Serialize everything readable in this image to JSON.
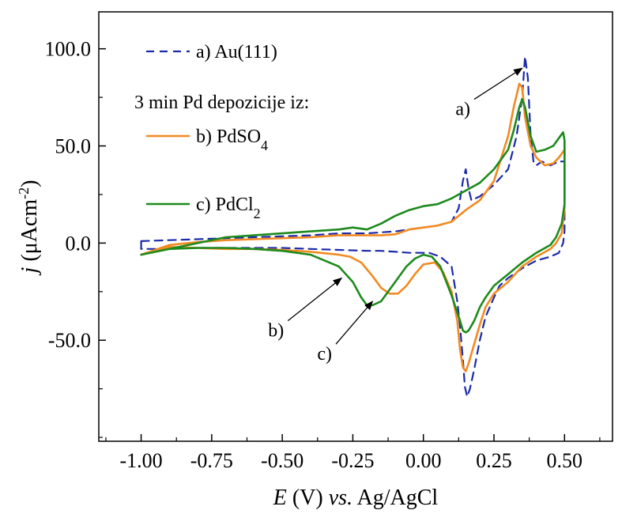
{
  "chart_data": {
    "type": "line",
    "title": "",
    "xlabel": {
      "var": "E",
      "unit": " (V) ",
      "vs": "vs.",
      "ref": " Ag/AgCl"
    },
    "ylabel": {
      "var": "j",
      "unit_pre": " (μAcm",
      "unit_sup": "-2",
      "unit_post": ")"
    },
    "xlim": [
      -1.15,
      0.67
    ],
    "ylim": [
      -102,
      119
    ],
    "x_ticks": [
      -1.0,
      -0.75,
      -0.5,
      -0.25,
      0.0,
      0.25,
      0.5
    ],
    "x_tick_labels": [
      "-1.00",
      "-0.75",
      "-0.50",
      "-0.25",
      "0.00",
      "0.25",
      "0.50"
    ],
    "y_ticks": [
      -50,
      0,
      50,
      100
    ],
    "y_tick_labels": [
      "-50.0",
      "0.0",
      "50.0",
      "100.0"
    ],
    "grid": false,
    "legend": {
      "placement": "top-left",
      "heading": "3 min Pd depozicije iz:",
      "entries": [
        {
          "text": "a) Au(111)",
          "sub": ""
        },
        {
          "text": "b) PdSO",
          "sub": "4"
        },
        {
          "text": "c) PdCl",
          "sub": "2"
        }
      ]
    },
    "annotations": [
      {
        "label": "a)",
        "tip": [
          0.35,
          90
        ],
        "tail": [
          0.18,
          74
        ]
      },
      {
        "label": "b)",
        "tip": [
          -0.29,
          -18
        ],
        "tail": [
          -0.48,
          -40
        ]
      },
      {
        "label": "c)",
        "tip": [
          -0.18,
          -30
        ],
        "tail": [
          -0.31,
          -52
        ]
      }
    ],
    "series": [
      {
        "key": "a",
        "name": "a) Au(111)",
        "color": "#1a2aa8",
        "dash": "dashed",
        "x": [
          -1.0,
          -0.9,
          -0.8,
          -0.6,
          -0.4,
          -0.3,
          -0.2,
          -0.1,
          0.0,
          0.05,
          0.1,
          0.125,
          0.14,
          0.15,
          0.16,
          0.17,
          0.2,
          0.25,
          0.3,
          0.33,
          0.35,
          0.36,
          0.37,
          0.38,
          0.39,
          0.4,
          0.42,
          0.45,
          0.48,
          0.5,
          0.5,
          0.495,
          0.48,
          0.45,
          0.4,
          0.35,
          0.3,
          0.27,
          0.25,
          0.22,
          0.2,
          0.18,
          0.165,
          0.155,
          0.147,
          0.14,
          0.13,
          0.12,
          0.1,
          0.06,
          0.02,
          0.0,
          -0.05,
          -0.1,
          -0.15,
          -0.2,
          -0.3,
          -0.4,
          -0.5,
          -0.6,
          -0.7,
          -0.8,
          -0.9,
          -1.0,
          -1.0
        ],
        "y": [
          1,
          1.5,
          2,
          3,
          4,
          5,
          5,
          6,
          8,
          9,
          11,
          18,
          32,
          38,
          28,
          22,
          24,
          30,
          38,
          55,
          75,
          96,
          85,
          55,
          42,
          40,
          42,
          40,
          42,
          42,
          6,
          0,
          -5,
          -7,
          -9,
          -13,
          -18,
          -22,
          -28,
          -38,
          -50,
          -65,
          -75,
          -79,
          -74,
          -60,
          -43,
          -30,
          -12,
          -7,
          -5,
          -5,
          -5,
          -4.5,
          -4,
          -4,
          -3.5,
          -3,
          -2.5,
          -2.5,
          -2.5,
          -2.5,
          -3,
          -3,
          1
        ]
      },
      {
        "key": "b",
        "name": "b) PdSO4",
        "color": "#f28a22",
        "dash": "solid",
        "x": [
          -1.0,
          -0.9,
          -0.8,
          -0.7,
          -0.6,
          -0.5,
          -0.4,
          -0.3,
          -0.2,
          -0.15,
          -0.1,
          -0.05,
          0.0,
          0.05,
          0.1,
          0.15,
          0.2,
          0.25,
          0.3,
          0.32,
          0.34,
          0.35,
          0.36,
          0.38,
          0.4,
          0.43,
          0.46,
          0.48,
          0.5,
          0.5,
          0.49,
          0.47,
          0.45,
          0.4,
          0.35,
          0.3,
          0.25,
          0.22,
          0.2,
          0.18,
          0.16,
          0.15,
          0.14,
          0.13,
          0.12,
          0.1,
          0.07,
          0.04,
          0.0,
          -0.03,
          -0.06,
          -0.09,
          -0.12,
          -0.15,
          -0.18,
          -0.22,
          -0.26,
          -0.3,
          -0.4,
          -0.5,
          -0.6,
          -0.7,
          -0.8,
          -0.9,
          -1.0
        ],
        "y": [
          -6,
          -1,
          0.5,
          1.5,
          2,
          2.5,
          3,
          4,
          4,
          4,
          4.5,
          7,
          8,
          9,
          11,
          17,
          22,
          32,
          55,
          70,
          82,
          80,
          65,
          50,
          44,
          40,
          41,
          44,
          48,
          18,
          5,
          0,
          -3,
          -7,
          -12,
          -20,
          -26,
          -33,
          -42,
          -52,
          -62,
          -66,
          -64,
          -55,
          -40,
          -25,
          -15,
          -10,
          -11,
          -16,
          -22,
          -26,
          -26,
          -23,
          -17,
          -10,
          -7,
          -6,
          -4.5,
          -3.5,
          -3,
          -3,
          -2.5,
          -2,
          -6
        ]
      },
      {
        "key": "c",
        "name": "c) PdCl2",
        "color": "#1d8a1d",
        "dash": "solid",
        "x": [
          -1.0,
          -0.9,
          -0.8,
          -0.7,
          -0.6,
          -0.5,
          -0.4,
          -0.3,
          -0.25,
          -0.2,
          -0.15,
          -0.1,
          -0.05,
          0.0,
          0.05,
          0.1,
          0.15,
          0.2,
          0.25,
          0.3,
          0.32,
          0.34,
          0.35,
          0.36,
          0.38,
          0.4,
          0.43,
          0.46,
          0.48,
          0.495,
          0.5,
          0.5,
          0.49,
          0.47,
          0.45,
          0.4,
          0.35,
          0.3,
          0.25,
          0.22,
          0.2,
          0.18,
          0.16,
          0.15,
          0.14,
          0.13,
          0.1,
          0.06,
          0.03,
          0.0,
          -0.03,
          -0.06,
          -0.09,
          -0.12,
          -0.15,
          -0.18,
          -0.2,
          -0.22,
          -0.25,
          -0.3,
          -0.4,
          -0.5,
          -0.6,
          -0.7,
          -0.8,
          -0.9,
          -1.0
        ],
        "y": [
          -6,
          -3,
          0,
          3,
          4,
          5,
          6,
          7,
          8,
          7,
          10,
          14,
          17,
          19,
          20,
          23,
          27,
          31,
          38,
          48,
          58,
          70,
          74,
          70,
          55,
          47,
          48,
          50,
          54,
          57,
          53,
          20,
          10,
          3,
          -1,
          -5,
          -10,
          -16,
          -22,
          -28,
          -33,
          -40,
          -45,
          -46,
          -45,
          -40,
          -27,
          -12,
          -7,
          -6,
          -8,
          -12,
          -18,
          -24,
          -30,
          -32,
          -32,
          -28,
          -20,
          -12,
          -6,
          -4,
          -3,
          -2.5,
          -2.5,
          -3,
          -6
        ]
      }
    ]
  }
}
